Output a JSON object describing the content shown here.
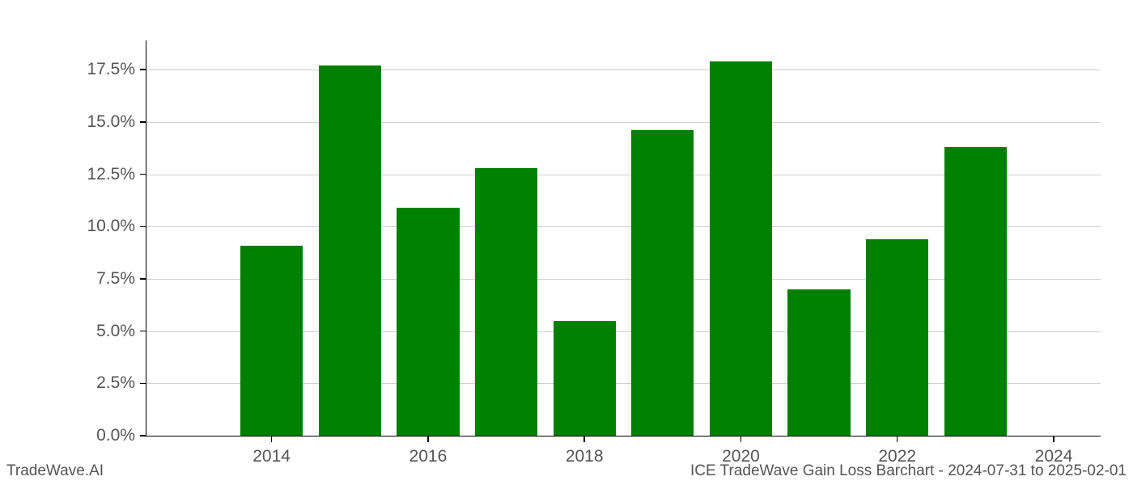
{
  "chart": {
    "type": "bar",
    "years": [
      2013,
      2014,
      2015,
      2016,
      2017,
      2018,
      2019,
      2020,
      2021,
      2022,
      2023,
      2024
    ],
    "values": [
      0,
      9.1,
      17.7,
      10.9,
      12.8,
      5.5,
      14.6,
      17.9,
      7.0,
      9.4,
      13.8,
      0
    ],
    "bar_color": "#008000",
    "bar_width_ratio": 0.8,
    "x_min": 2012.4,
    "x_max": 2024.6,
    "y_min": 0,
    "y_max": 18.9,
    "ytick_values": [
      0.0,
      2.5,
      5.0,
      7.5,
      10.0,
      12.5,
      15.0,
      17.5
    ],
    "ytick_labels": [
      "0.0%",
      "2.5%",
      "5.0%",
      "7.5%",
      "10.0%",
      "12.5%",
      "15.0%",
      "17.5%"
    ],
    "xtick_values": [
      2014,
      2016,
      2018,
      2020,
      2022,
      2024
    ],
    "xtick_labels": [
      "2014",
      "2016",
      "2018",
      "2020",
      "2022",
      "2024"
    ],
    "grid_color": "#d0d0d0",
    "axis_color": "#000000",
    "tick_label_color": "#555555",
    "tick_fontsize": 21,
    "background_color": "#ffffff"
  },
  "footer": {
    "left": "TradeWave.AI",
    "right": "ICE TradeWave Gain Loss Barchart - 2024-07-31 to 2025-02-01",
    "fontsize": 19,
    "color": "#555555"
  }
}
